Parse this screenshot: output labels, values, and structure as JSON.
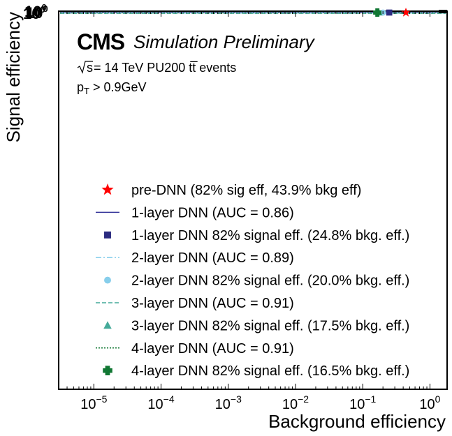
{
  "chart_data": {
    "type": "line",
    "xscale": "log",
    "xlabel": "Background efficiency",
    "ylabel": "Signal efficiency",
    "xlim": [
      3e-06,
      1.8
    ],
    "x_ticks": [
      {
        "value": 1e-05,
        "base": "10",
        "exp": "−5"
      },
      {
        "value": 0.0001,
        "base": "10",
        "exp": "−4"
      },
      {
        "value": 0.001,
        "base": "10",
        "exp": "−3"
      },
      {
        "value": 0.01,
        "base": "10",
        "exp": "−2"
      },
      {
        "value": 0.1,
        "base": "10",
        "exp": "−1"
      },
      {
        "value": 1,
        "base": "10",
        "exp": "0"
      }
    ],
    "y_tick_labels": [
      "10",
      "10",
      "10"
    ],
    "y_tick_exps": [
      "0",
      "0",
      "0"
    ],
    "header": {
      "experiment": "CMS",
      "status": "Simulation Preliminary",
      "energy_sqrt": "s",
      "energy_rest": " = 14 TeV PU200 tt̅ events",
      "cut_p": "p",
      "cut_sub": "T",
      "cut_rest": " > 0.9GeV"
    },
    "legend_position": "center-right",
    "series": [
      {
        "name": "pre-DNN (82% sig eff, 43.9% bkg eff)",
        "kind": "marker",
        "marker": "star",
        "color": "#ff0000",
        "x": 0.439,
        "y": 0.82
      },
      {
        "name": "1-layer DNN (AUC = 0.86)",
        "kind": "line",
        "dash": "solid",
        "color": "#333399"
      },
      {
        "name": "1-layer DNN 82% signal eff. (24.8% bkg. eff.)",
        "kind": "marker",
        "marker": "square",
        "color": "#2b2b80",
        "x": 0.248,
        "y": 0.82
      },
      {
        "name": "2-layer DNN (AUC = 0.89)",
        "kind": "line",
        "dash": "dashdot",
        "color": "#87ceeb"
      },
      {
        "name": "2-layer DNN 82% signal eff. (20.0% bkg. eff.)",
        "kind": "marker",
        "marker": "circle",
        "color": "#87ceeb",
        "x": 0.2,
        "y": 0.82
      },
      {
        "name": "3-layer DNN (AUC = 0.91)",
        "kind": "line",
        "dash": "dashed",
        "color": "#44aa99"
      },
      {
        "name": "3-layer DNN 82% signal eff. (17.5% bkg. eff.)",
        "kind": "marker",
        "marker": "triangle",
        "color": "#44aa99",
        "x": 0.175,
        "y": 0.82
      },
      {
        "name": "4-layer DNN (AUC = 0.91)",
        "kind": "line",
        "dash": "dotted",
        "color": "#117733"
      },
      {
        "name": "4-layer DNN 82% signal eff. (16.5% bkg. eff.)",
        "kind": "marker",
        "marker": "plus",
        "color": "#117733",
        "x": 0.165,
        "y": 0.82
      }
    ]
  }
}
